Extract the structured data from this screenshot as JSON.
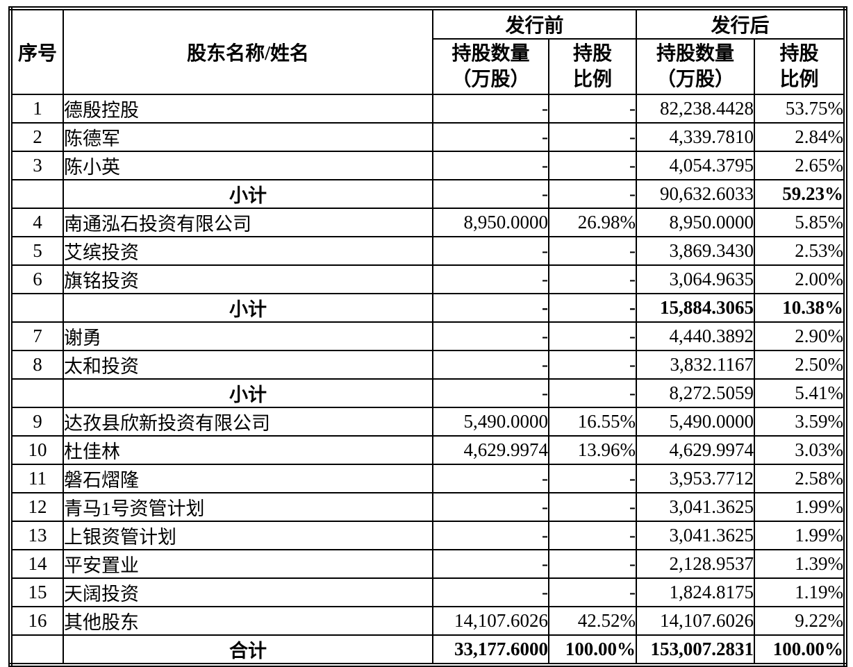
{
  "header": {
    "col_no": "序号",
    "col_name": "股东名称/姓名",
    "group_pre": "发行前",
    "group_post": "发行后",
    "sub_qty": "持股数量\n（万股）",
    "sub_ratio": "持股\n比例"
  },
  "rows": [
    {
      "type": "normal",
      "no": "1",
      "name": "德殷控股",
      "q1": "-",
      "p1": "-",
      "q2": "82,238.4428",
      "p2": "53.75%",
      "bold": []
    },
    {
      "type": "normal",
      "no": "2",
      "name": "陈德军",
      "q1": "-",
      "p1": "-",
      "q2": "4,339.7810",
      "p2": "2.84%",
      "bold": []
    },
    {
      "type": "normal",
      "no": "3",
      "name": "陈小英",
      "q1": "-",
      "p1": "-",
      "q2": "4,054.3795",
      "p2": "2.65%",
      "bold": []
    },
    {
      "type": "subtotal",
      "no": "",
      "name": "小计",
      "q1": "-",
      "p1": "-",
      "q2": "90,632.6033",
      "p2": "59.23%",
      "bold": [
        "p2"
      ]
    },
    {
      "type": "normal",
      "no": "4",
      "name": "南通泓石投资有限公司",
      "q1": "8,950.0000",
      "p1": "26.98%",
      "q2": "8,950.0000",
      "p2": "5.85%",
      "bold": []
    },
    {
      "type": "normal",
      "no": "5",
      "name": "艾缤投资",
      "q1": "-",
      "p1": "-",
      "q2": "3,869.3430",
      "p2": "2.53%",
      "bold": []
    },
    {
      "type": "normal",
      "no": "6",
      "name": "旗铭投资",
      "q1": "-",
      "p1": "-",
      "q2": "3,064.9635",
      "p2": "2.00%",
      "bold": []
    },
    {
      "type": "subtotal",
      "no": "",
      "name": "小计",
      "q1": "-",
      "p1": "-",
      "q2": "15,884.3065",
      "p2": "10.38%",
      "bold": [
        "q1",
        "p1",
        "q2",
        "p2"
      ]
    },
    {
      "type": "normal",
      "no": "7",
      "name": "谢勇",
      "q1": "-",
      "p1": "-",
      "q2": "4,440.3892",
      "p2": "2.90%",
      "bold": []
    },
    {
      "type": "normal",
      "no": "8",
      "name": "太和投资",
      "q1": "-",
      "p1": "-",
      "q2": "3,832.1167",
      "p2": "2.50%",
      "bold": []
    },
    {
      "type": "subtotal",
      "no": "",
      "name": "小计",
      "q1": "-",
      "p1": "-",
      "q2": "8,272.5059",
      "p2": "5.41%",
      "bold": []
    },
    {
      "type": "normal",
      "no": "9",
      "name": "达孜县欣新投资有限公司",
      "q1": "5,490.0000",
      "p1": "16.55%",
      "q2": "5,490.0000",
      "p2": "3.59%",
      "bold": []
    },
    {
      "type": "normal",
      "no": "10",
      "name": "杜佳林",
      "q1": "4,629.9974",
      "p1": "13.96%",
      "q2": "4,629.9974",
      "p2": "3.03%",
      "bold": []
    },
    {
      "type": "normal",
      "no": "11",
      "name": "磐石熠隆",
      "q1": "-",
      "p1": "-",
      "q2": "3,953.7712",
      "p2": "2.58%",
      "bold": []
    },
    {
      "type": "normal",
      "no": "12",
      "name": "青马1号资管计划",
      "q1": "-",
      "p1": "-",
      "q2": "3,041.3625",
      "p2": "1.99%",
      "bold": []
    },
    {
      "type": "normal",
      "no": "13",
      "name": "上银资管计划",
      "q1": "-",
      "p1": "-",
      "q2": "3,041.3625",
      "p2": "1.99%",
      "bold": []
    },
    {
      "type": "normal",
      "no": "14",
      "name": "平安置业",
      "q1": "-",
      "p1": "-",
      "q2": "2,128.9537",
      "p2": "1.39%",
      "bold": []
    },
    {
      "type": "normal",
      "no": "15",
      "name": "天阔投资",
      "q1": "-",
      "p1": "-",
      "q2": "1,824.8175",
      "p2": "1.19%",
      "bold": []
    },
    {
      "type": "normal",
      "no": "16",
      "name": "其他股东",
      "q1": "14,107.6026",
      "p1": "42.52%",
      "q2": "14,107.6026",
      "p2": "9.22%",
      "bold": []
    },
    {
      "type": "total",
      "no": "",
      "name": "合计",
      "q1": "33,177.6000",
      "p1": "100.00%",
      "q2": "153,007.2831",
      "p2": "100.00%",
      "bold": [
        "q1",
        "p1",
        "q2",
        "p2"
      ]
    }
  ],
  "colors": {
    "border": "#000000",
    "text": "#000000",
    "background": "#ffffff"
  }
}
